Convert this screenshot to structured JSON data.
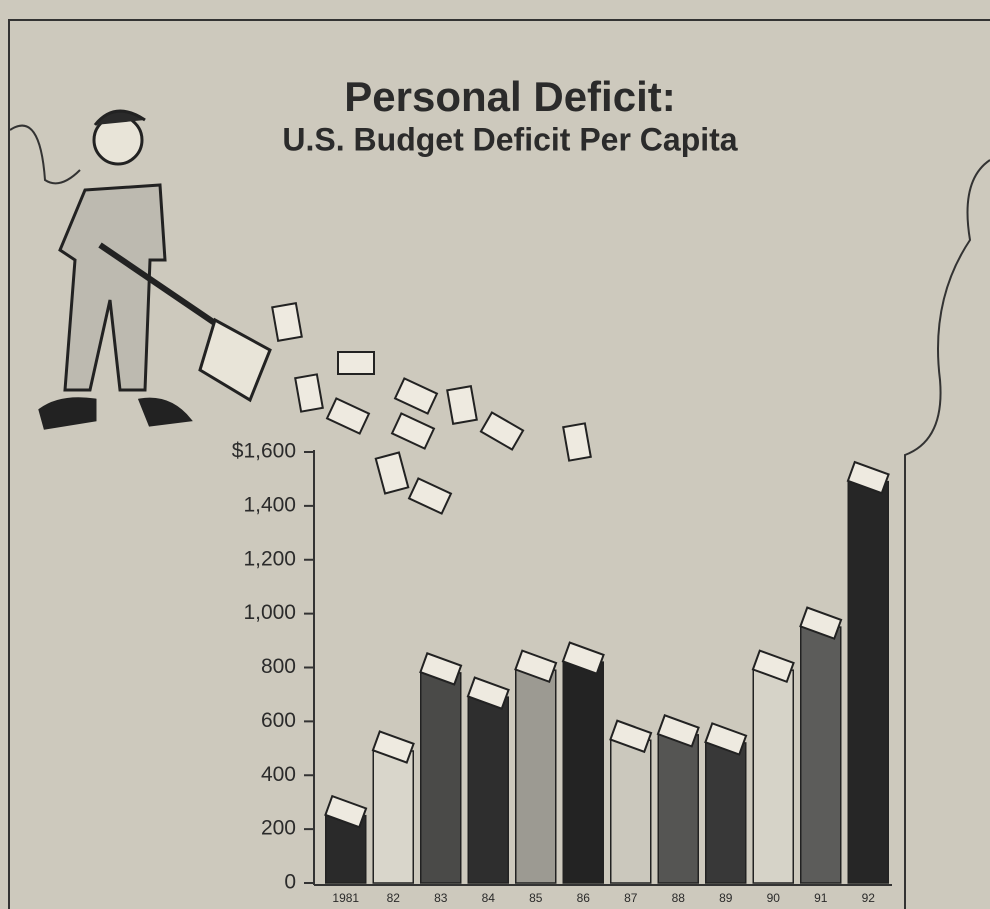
{
  "chart_data": {
    "type": "bar",
    "title": "Personal Deficit:",
    "subtitle": "U.S. Budget Deficit Per Capita",
    "categories": [
      "1981",
      "82",
      "83",
      "84",
      "85",
      "86",
      "87",
      "88",
      "89",
      "90",
      "91",
      "92"
    ],
    "values": [
      250,
      490,
      780,
      690,
      790,
      820,
      530,
      550,
      520,
      790,
      950,
      1490
    ],
    "colors": [
      "#2a2a2a",
      "#d9d6cb",
      "#4a4a48",
      "#2e2e2e",
      "#9c9a92",
      "#232323",
      "#cbc8bd",
      "#555553",
      "#383838",
      "#d6d3c8",
      "#5c5c5a",
      "#262626"
    ],
    "ylim": [
      0,
      1600
    ],
    "yticks": [
      0,
      200,
      400,
      600,
      800,
      {
        "value": 1000,
        "label": "1,000"
      },
      {
        "value": 1200,
        "label": "1,200"
      },
      {
        "value": 1400,
        "label": "1,400"
      },
      {
        "value": 1600,
        "label": "$1,600"
      }
    ]
  }
}
